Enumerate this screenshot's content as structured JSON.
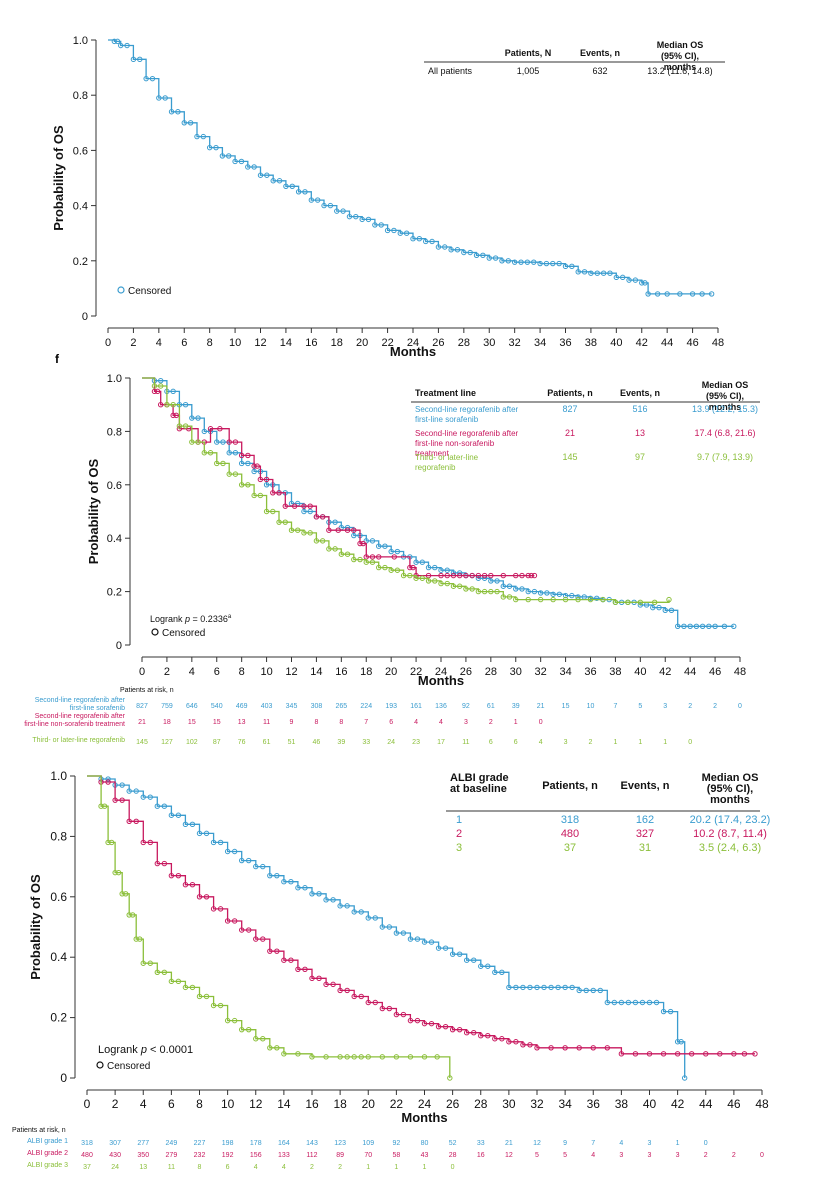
{
  "colors": {
    "blue": "#3a9ccf",
    "magenta": "#c8195f",
    "green": "#8bbf3a",
    "axis": "#333333",
    "text": "#111111"
  },
  "stray_mark": "f",
  "chart_data": [
    {
      "type": "line",
      "subtype": "kaplan-meier",
      "ylabel": "Probability of OS",
      "xlabel": "Months",
      "xlim": [
        0,
        48
      ],
      "ylim": [
        0,
        1.0
      ],
      "xticks": [
        "0",
        "2",
        "4",
        "6",
        "8",
        "10",
        "12",
        "14",
        "16",
        "18",
        "20",
        "22",
        "24",
        "26",
        "28",
        "30",
        "32",
        "34",
        "36",
        "38",
        "40",
        "42",
        "44",
        "46",
        "48"
      ],
      "yticks": [
        "0",
        "0.2",
        "0.4",
        "0.6",
        "0.8",
        "1.0"
      ],
      "censored_legend": "Censored",
      "table": {
        "headers": [
          "",
          "Patients, N",
          "Events, n",
          "Median OS (95% CI), months"
        ],
        "rows": [
          [
            "All patients",
            "1,005",
            "632",
            "13.2 (11.6, 14.8)"
          ]
        ]
      },
      "series": [
        {
          "name": "All patients",
          "color": "blue",
          "x": [
            0,
            0.5,
            1,
            2,
            3,
            4,
            5,
            6,
            7,
            8,
            9,
            10,
            11,
            12,
            13,
            14,
            15,
            16,
            17,
            18,
            19,
            20,
            21,
            22,
            23,
            24,
            25,
            26,
            27,
            28,
            29,
            30,
            31,
            32,
            33,
            34,
            35,
            36,
            37,
            38,
            39,
            40,
            41,
            42,
            42.5,
            44,
            46,
            47.5
          ],
          "y": [
            1.0,
            0.995,
            0.98,
            0.93,
            0.86,
            0.79,
            0.74,
            0.7,
            0.65,
            0.61,
            0.58,
            0.56,
            0.54,
            0.51,
            0.49,
            0.47,
            0.45,
            0.42,
            0.4,
            0.38,
            0.36,
            0.35,
            0.33,
            0.31,
            0.3,
            0.28,
            0.27,
            0.25,
            0.24,
            0.23,
            0.22,
            0.21,
            0.2,
            0.195,
            0.195,
            0.19,
            0.19,
            0.18,
            0.16,
            0.155,
            0.155,
            0.14,
            0.13,
            0.12,
            0.08,
            0.08,
            0.08,
            0.08
          ]
        }
      ]
    },
    {
      "type": "line",
      "subtype": "kaplan-meier",
      "ylabel": "Probability of OS",
      "xlabel": "Months",
      "xlim": [
        0,
        48
      ],
      "ylim": [
        0,
        1.0
      ],
      "xticks": [
        "0",
        "2",
        "4",
        "6",
        "8",
        "10",
        "12",
        "14",
        "16",
        "18",
        "20",
        "22",
        "24",
        "26",
        "28",
        "30",
        "32",
        "34",
        "36",
        "38",
        "40",
        "42",
        "44",
        "46",
        "48"
      ],
      "yticks": [
        "0",
        "0.2",
        "0.4",
        "0.6",
        "0.8",
        "1.0"
      ],
      "logrank_prefix": "Logrank ",
      "logrank_p": "p",
      "logrank_value": " = 0.2336",
      "logrank_sup": "a",
      "censored_legend": "Censored",
      "table": {
        "headers": [
          "Treatment line",
          "Patients, n",
          "Events, n",
          "Median OS (95% CI), months"
        ],
        "rows": [
          [
            "Second-line regorafenib after first-line sorafenib",
            "827",
            "516",
            "13.9 (12.2, 15.3)"
          ],
          [
            "Second-line regorafenib after first-line non-sorafenib treatment",
            "21",
            "13",
            "17.4 (6.8, 21.6)"
          ],
          [
            "Third- or later-line regorafenib",
            "145",
            "97",
            "9.7 (7.9, 13.9)"
          ]
        ]
      },
      "series": [
        {
          "name": "Second-line regorafenib after first-line sorafenib",
          "color": "blue",
          "x": [
            0,
            1,
            2,
            3,
            4,
            5,
            6,
            7,
            8,
            9,
            10,
            11,
            12,
            13,
            14,
            15,
            16,
            17,
            18,
            19,
            20,
            21,
            22,
            23,
            24,
            25,
            26,
            27,
            28,
            29,
            30,
            31,
            32,
            33,
            34,
            35,
            36,
            37,
            38,
            39,
            40,
            41,
            42,
            43,
            44,
            45,
            46,
            47.5
          ],
          "y": [
            1.0,
            0.99,
            0.95,
            0.9,
            0.85,
            0.8,
            0.76,
            0.72,
            0.68,
            0.65,
            0.6,
            0.57,
            0.53,
            0.5,
            0.48,
            0.46,
            0.44,
            0.41,
            0.39,
            0.37,
            0.35,
            0.33,
            0.31,
            0.29,
            0.28,
            0.27,
            0.26,
            0.25,
            0.24,
            0.22,
            0.21,
            0.2,
            0.195,
            0.19,
            0.185,
            0.18,
            0.175,
            0.17,
            0.16,
            0.16,
            0.15,
            0.14,
            0.13,
            0.07,
            0.07,
            0.07,
            0.07,
            0.07
          ]
        },
        {
          "name": "Second-line regorafenib after first-line non-sorafenib treatment",
          "color": "magenta",
          "x": [
            0,
            1,
            1.5,
            2.5,
            3,
            4.5,
            5.5,
            7,
            8,
            9,
            9.5,
            10.5,
            11.5,
            13,
            14,
            15,
            16.5,
            17.5,
            18,
            19,
            21.5,
            22,
            24,
            25,
            26,
            27,
            28,
            30,
            31,
            31.5
          ],
          "y": [
            1.0,
            0.95,
            0.9,
            0.86,
            0.81,
            0.76,
            0.81,
            0.76,
            0.71,
            0.67,
            0.62,
            0.57,
            0.52,
            0.52,
            0.48,
            0.43,
            0.43,
            0.38,
            0.33,
            0.33,
            0.29,
            0.26,
            0.26,
            0.26,
            0.26,
            0.26,
            0.26,
            0.26,
            0.26,
            0.26
          ]
        },
        {
          "name": "Third- or later-line regorafenib",
          "color": "green",
          "x": [
            0,
            1,
            2,
            3,
            4,
            5,
            6,
            7,
            8,
            9,
            10,
            11,
            12,
            13,
            14,
            15,
            16,
            17,
            18,
            19,
            20,
            21,
            22,
            23,
            24,
            25,
            26,
            27,
            28,
            29,
            30,
            32,
            34,
            36,
            38,
            40,
            42.3
          ],
          "y": [
            1.0,
            0.97,
            0.9,
            0.82,
            0.76,
            0.72,
            0.68,
            0.64,
            0.6,
            0.56,
            0.5,
            0.46,
            0.43,
            0.42,
            0.39,
            0.36,
            0.34,
            0.32,
            0.31,
            0.29,
            0.28,
            0.26,
            0.25,
            0.24,
            0.23,
            0.22,
            0.21,
            0.2,
            0.2,
            0.18,
            0.17,
            0.17,
            0.17,
            0.17,
            0.16,
            0.16,
            0.17
          ]
        }
      ],
      "at_risk": {
        "title": "Patients at risk, n",
        "rows": [
          {
            "label_lines": [
              "Second-line regorafenib after",
              "first-line sorafenib"
            ],
            "color": "blue",
            "values": [
              "827",
              "759",
              "646",
              "540",
              "469",
              "403",
              "345",
              "308",
              "265",
              "224",
              "193",
              "161",
              "136",
              "92",
              "61",
              "39",
              "21",
              "15",
              "10",
              "7",
              "5",
              "3",
              "2",
              "2",
              "0"
            ]
          },
          {
            "label_lines": [
              "Second-line regorafenib after",
              "first-line non-sorafenib treatment"
            ],
            "color": "magenta",
            "values": [
              "21",
              "18",
              "15",
              "15",
              "13",
              "11",
              "9",
              "8",
              "8",
              "7",
              "6",
              "4",
              "4",
              "3",
              "2",
              "1",
              "0"
            ]
          },
          {
            "label_lines": [
              "Third- or later-line regorafenib"
            ],
            "color": "green",
            "values": [
              "145",
              "127",
              "102",
              "87",
              "76",
              "61",
              "51",
              "46",
              "39",
              "33",
              "24",
              "23",
              "17",
              "11",
              "6",
              "6",
              "4",
              "3",
              "2",
              "1",
              "1",
              "1",
              "0"
            ]
          }
        ]
      }
    },
    {
      "type": "line",
      "subtype": "kaplan-meier",
      "ylabel": "Probability of OS",
      "xlabel": "Months",
      "xlim": [
        0,
        48
      ],
      "ylim": [
        0,
        1.0
      ],
      "xticks": [
        "0",
        "2",
        "4",
        "6",
        "8",
        "10",
        "12",
        "14",
        "16",
        "18",
        "20",
        "22",
        "24",
        "26",
        "28",
        "30",
        "32",
        "34",
        "36",
        "38",
        "40",
        "42",
        "44",
        "46",
        "48"
      ],
      "yticks": [
        "0",
        "0.2",
        "0.4",
        "0.6",
        "0.8",
        "1.0"
      ],
      "logrank_prefix": "Logrank ",
      "logrank_p": "p",
      "logrank_value": " < 0.0001",
      "logrank_sup": "",
      "censored_legend": "Censored",
      "table": {
        "headers": [
          "ALBI grade at baseline",
          "Patients, n",
          "Events, n",
          "Median OS (95% CI), months"
        ],
        "rows": [
          [
            "1",
            "318",
            "162",
            "20.2 (17.4, 23.2)"
          ],
          [
            "2",
            "480",
            "327",
            "10.2 (8.7, 11.4)"
          ],
          [
            "3",
            "37",
            "31",
            "3.5 (2.4, 6.3)"
          ]
        ]
      },
      "series": [
        {
          "name": "ALBI grade 1",
          "color": "blue",
          "x": [
            0,
            1,
            2,
            3,
            4,
            5,
            6,
            7,
            8,
            9,
            10,
            11,
            12,
            13,
            14,
            15,
            16,
            17,
            18,
            19,
            20,
            21,
            22,
            23,
            24,
            25,
            26,
            27,
            28,
            29,
            30,
            31,
            32,
            33,
            34,
            35,
            36,
            37,
            38,
            39,
            40,
            41,
            42,
            42.5
          ],
          "y": [
            1.0,
            0.99,
            0.97,
            0.95,
            0.93,
            0.9,
            0.87,
            0.84,
            0.81,
            0.78,
            0.75,
            0.72,
            0.7,
            0.67,
            0.65,
            0.63,
            0.61,
            0.59,
            0.57,
            0.55,
            0.53,
            0.5,
            0.48,
            0.46,
            0.45,
            0.43,
            0.41,
            0.39,
            0.37,
            0.35,
            0.3,
            0.3,
            0.3,
            0.3,
            0.3,
            0.29,
            0.29,
            0.25,
            0.25,
            0.25,
            0.25,
            0.22,
            0.12,
            0.0
          ]
        },
        {
          "name": "ALBI grade 2",
          "color": "magenta",
          "x": [
            0,
            1,
            2,
            3,
            4,
            5,
            6,
            7,
            8,
            9,
            10,
            11,
            12,
            13,
            14,
            15,
            16,
            17,
            18,
            19,
            20,
            21,
            22,
            23,
            24,
            25,
            26,
            27,
            28,
            29,
            30,
            31,
            32,
            34,
            36,
            38,
            40,
            42,
            44,
            46,
            47.5
          ],
          "y": [
            1.0,
            0.98,
            0.92,
            0.85,
            0.78,
            0.71,
            0.67,
            0.64,
            0.6,
            0.56,
            0.52,
            0.49,
            0.46,
            0.42,
            0.39,
            0.36,
            0.33,
            0.31,
            0.29,
            0.27,
            0.25,
            0.23,
            0.21,
            0.19,
            0.18,
            0.17,
            0.16,
            0.15,
            0.14,
            0.13,
            0.12,
            0.11,
            0.1,
            0.1,
            0.1,
            0.08,
            0.08,
            0.08,
            0.08,
            0.08,
            0.08
          ]
        },
        {
          "name": "ALBI grade 3",
          "color": "green",
          "x": [
            0,
            1,
            1.5,
            2,
            2.5,
            3,
            3.5,
            4,
            5,
            6,
            7,
            8,
            9,
            10,
            11,
            12,
            13,
            14,
            16,
            18,
            19,
            20,
            22,
            24,
            25.8
          ],
          "y": [
            1.0,
            0.9,
            0.78,
            0.68,
            0.61,
            0.54,
            0.46,
            0.38,
            0.35,
            0.32,
            0.3,
            0.27,
            0.24,
            0.19,
            0.16,
            0.13,
            0.1,
            0.08,
            0.07,
            0.07,
            0.07,
            0.07,
            0.07,
            0.07,
            0.0
          ]
        }
      ],
      "at_risk": {
        "title": "Patients at risk, n",
        "rows": [
          {
            "label_lines": [
              "ALBI grade 1"
            ],
            "color": "blue",
            "values": [
              "318",
              "307",
              "277",
              "249",
              "227",
              "198",
              "178",
              "164",
              "143",
              "123",
              "109",
              "92",
              "80",
              "52",
              "33",
              "21",
              "12",
              "9",
              "7",
              "4",
              "3",
              "1",
              "0"
            ]
          },
          {
            "label_lines": [
              "ALBI grade 2"
            ],
            "color": "magenta",
            "values": [
              "480",
              "430",
              "350",
              "279",
              "232",
              "192",
              "156",
              "133",
              "112",
              "89",
              "70",
              "58",
              "43",
              "28",
              "16",
              "12",
              "5",
              "5",
              "4",
              "3",
              "3",
              "3",
              "2",
              "2",
              "0"
            ]
          },
          {
            "label_lines": [
              "ALBI grade 3"
            ],
            "color": "green",
            "values": [
              "37",
              "24",
              "13",
              "11",
              "8",
              "6",
              "4",
              "4",
              "2",
              "2",
              "1",
              "1",
              "1",
              "0"
            ]
          }
        ]
      }
    }
  ]
}
